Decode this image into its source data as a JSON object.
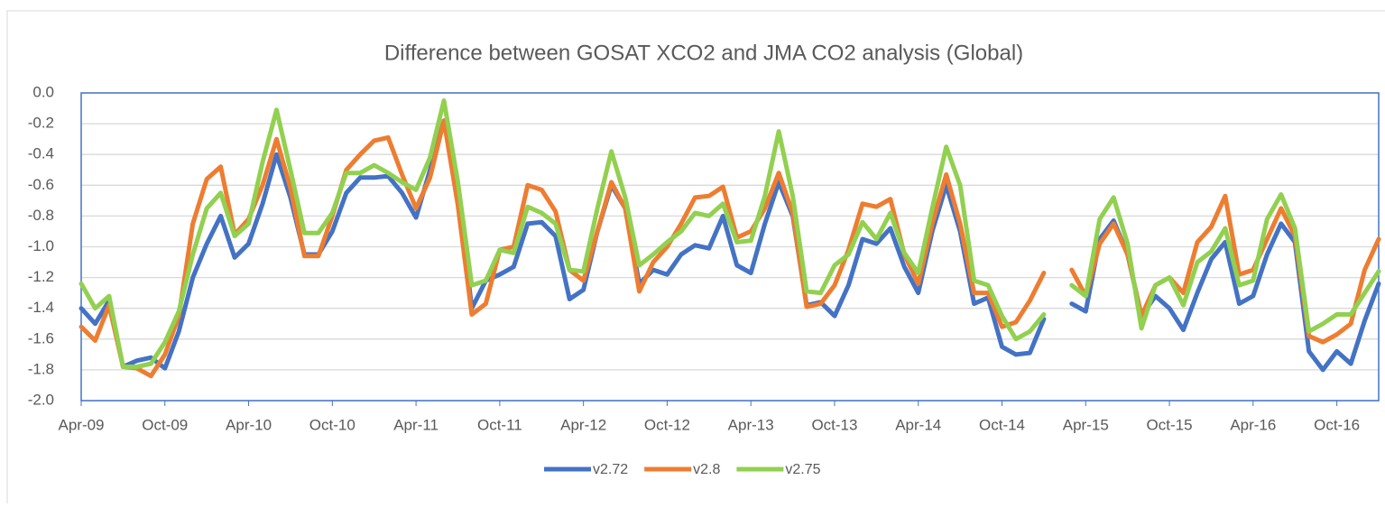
{
  "chart_data": {
    "type": "line",
    "title": "Difference between GOSAT XCO2 and JMA CO2 analysis (Global)",
    "categories": [
      "Apr-09",
      null,
      null,
      null,
      null,
      null,
      "Oct-09",
      null,
      null,
      null,
      null,
      null,
      "Apr-10",
      null,
      null,
      null,
      null,
      null,
      "Oct-10",
      null,
      null,
      null,
      null,
      null,
      "Apr-11",
      null,
      null,
      null,
      null,
      null,
      "Oct-11",
      null,
      null,
      null,
      null,
      null,
      "Apr-12",
      null,
      null,
      null,
      null,
      null,
      "Oct-12",
      null,
      null,
      null,
      null,
      null,
      "Apr-13",
      null,
      null,
      null,
      null,
      null,
      "Oct-13",
      null,
      null,
      null,
      null,
      null,
      "Apr-14",
      null,
      null,
      null,
      null,
      null,
      "Oct-14",
      null,
      null,
      null,
      null,
      null,
      "Apr-15",
      null,
      null,
      null,
      null,
      null,
      "Oct-15",
      null,
      null,
      null,
      null,
      null,
      "Apr-16",
      null,
      null,
      null,
      null,
      null,
      "Oct-16",
      null,
      null,
      null
    ],
    "series": [
      {
        "name": "v2.72",
        "color": "#4472c4",
        "values": [
          -1.4,
          -1.5,
          -1.35,
          -1.78,
          -1.74,
          -1.72,
          -1.79,
          -1.55,
          -1.2,
          -0.98,
          -0.8,
          -1.07,
          -0.98,
          -0.72,
          -0.4,
          -0.68,
          -1.05,
          -1.05,
          -0.9,
          -0.65,
          -0.55,
          -0.55,
          -0.54,
          -0.65,
          -0.81,
          -0.5,
          -0.18,
          -0.65,
          -1.4,
          -1.22,
          -1.18,
          -1.13,
          -0.85,
          -0.84,
          -0.93,
          -1.34,
          -1.28,
          -0.9,
          -0.6,
          -0.75,
          -1.24,
          -1.15,
          -1.18,
          -1.05,
          -0.99,
          -1.01,
          -0.8,
          -1.12,
          -1.17,
          -0.85,
          -0.58,
          -0.8,
          -1.38,
          -1.36,
          -1.45,
          -1.25,
          -0.95,
          -0.98,
          -0.88,
          -1.13,
          -1.3,
          -0.9,
          -0.6,
          -0.9,
          -1.37,
          -1.33,
          -1.65,
          -1.7,
          -1.69,
          -1.47,
          null,
          -1.37,
          -1.42,
          -0.95,
          -0.83,
          -1.05,
          -1.45,
          -1.32,
          -1.4,
          -1.54,
          -1.3,
          -1.08,
          -0.97,
          -1.37,
          -1.32,
          -1.05,
          -0.85,
          -0.97,
          -1.68,
          -1.8,
          -1.68,
          -1.76,
          -1.48,
          -1.24
        ]
      },
      {
        "name": "v2.8",
        "color": "#ed7d31",
        "values": [
          -1.52,
          -1.61,
          -1.38,
          -1.78,
          -1.79,
          -1.84,
          -1.7,
          -1.45,
          -0.85,
          -0.56,
          -0.48,
          -0.92,
          -0.82,
          -0.6,
          -0.3,
          -0.62,
          -1.06,
          -1.06,
          -0.8,
          -0.5,
          -0.4,
          -0.31,
          -0.29,
          -0.53,
          -0.75,
          -0.55,
          -0.18,
          -0.73,
          -1.44,
          -1.37,
          -1.02,
          -1.0,
          -0.6,
          -0.63,
          -0.77,
          -1.15,
          -1.22,
          -0.9,
          -0.58,
          -0.75,
          -1.29,
          -1.1,
          -1.0,
          -0.85,
          -0.68,
          -0.67,
          -0.61,
          -0.94,
          -0.9,
          -0.75,
          -0.52,
          -0.78,
          -1.39,
          -1.37,
          -1.25,
          -1.02,
          -0.72,
          -0.74,
          -0.69,
          -1.05,
          -1.24,
          -0.85,
          -0.53,
          -0.85,
          -1.3,
          -1.3,
          -1.52,
          -1.49,
          -1.35,
          -1.17,
          null,
          -1.15,
          -1.32,
          -0.98,
          -0.85,
          -1.05,
          -1.45,
          -1.25,
          -1.2,
          -1.3,
          -0.97,
          -0.87,
          -0.67,
          -1.18,
          -1.15,
          -0.95,
          -0.75,
          -0.93,
          -1.58,
          -1.62,
          -1.57,
          -1.5,
          -1.15,
          -0.95
        ]
      },
      {
        "name": "v2.75",
        "color": "#92d050",
        "values": [
          -1.24,
          -1.4,
          -1.32,
          -1.78,
          -1.78,
          -1.76,
          -1.62,
          -1.42,
          -1.05,
          -0.75,
          -0.65,
          -0.93,
          -0.85,
          -0.45,
          -0.11,
          -0.5,
          -0.91,
          -0.91,
          -0.78,
          -0.52,
          -0.52,
          -0.47,
          -0.52,
          -0.58,
          -0.63,
          -0.42,
          -0.05,
          -0.58,
          -1.25,
          -1.22,
          -1.02,
          -1.04,
          -0.74,
          -0.78,
          -0.85,
          -1.15,
          -1.16,
          -0.75,
          -0.38,
          -0.68,
          -1.12,
          -1.05,
          -0.97,
          -0.9,
          -0.78,
          -0.8,
          -0.72,
          -0.97,
          -0.96,
          -0.67,
          -0.25,
          -0.67,
          -1.29,
          -1.3,
          -1.12,
          -1.05,
          -0.84,
          -0.95,
          -0.78,
          -1.04,
          -1.17,
          -0.75,
          -0.35,
          -0.6,
          -1.22,
          -1.25,
          -1.45,
          -1.6,
          -1.55,
          -1.44,
          null,
          -1.25,
          -1.32,
          -0.82,
          -0.68,
          -0.98,
          -1.53,
          -1.25,
          -1.2,
          -1.38,
          -1.1,
          -1.03,
          -0.88,
          -1.25,
          -1.22,
          -0.82,
          -0.66,
          -0.88,
          -1.55,
          -1.5,
          -1.44,
          -1.44,
          -1.3,
          -1.16
        ]
      }
    ],
    "ylim": [
      -2.0,
      0.0
    ],
    "yticks": [
      {
        "value": 0.0,
        "label": "0.0"
      },
      -0.2,
      -0.4,
      -0.6,
      -0.8,
      {
        "value": -1.0,
        "label": "-1.0"
      },
      -1.2,
      -1.4,
      -1.6,
      -1.8,
      {
        "value": -2.0,
        "label": "-2.0"
      }
    ],
    "grid": true,
    "legend": "bottom"
  }
}
